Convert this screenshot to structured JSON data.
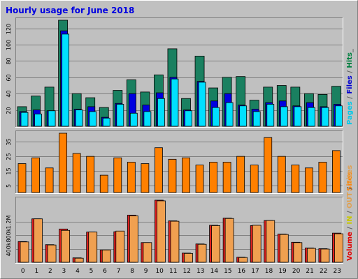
{
  "chart_data": {
    "type": "bar",
    "title": "Hourly usage for June 2018",
    "categories": [
      "0",
      "1",
      "2",
      "3",
      "4",
      "5",
      "6",
      "7",
      "8",
      "9",
      "10",
      "11",
      "12",
      "13",
      "14",
      "15",
      "16",
      "17",
      "18",
      "19",
      "20",
      "21",
      "22",
      "23"
    ],
    "panels": [
      {
        "id": "hits",
        "ylim": [
          0,
          130
        ],
        "yticks": [
          "20",
          "40",
          "60",
          "80",
          "100",
          "120"
        ],
        "ytick_values": [
          20,
          40,
          60,
          80,
          100,
          120
        ],
        "side_label": [
          {
            "text": "Pages",
            "color": "#00c8e8"
          },
          {
            "text": " / ",
            "color": "#606060"
          },
          {
            "text": "Files",
            "color": "#0000d0"
          },
          {
            "text": " / ",
            "color": "#606060"
          },
          {
            "text": "Hits",
            "color": "#008040"
          },
          {
            "text": "_",
            "color": "#606060"
          }
        ],
        "series": [
          {
            "name": "Hits",
            "color": "#1a8060",
            "values": [
              24,
              37,
              48,
              130,
              40,
              35,
              23,
              44,
              57,
              42,
              63,
              95,
              34,
              86,
              47,
              60,
              61,
              32,
              48,
              50,
              48,
              40,
              39,
              49
            ]
          },
          {
            "name": "Files",
            "color": "#0000e0",
            "values": [
              18,
              20,
              19,
              117,
              21,
              24,
              11,
              28,
              40,
              26,
              41,
              60,
              20,
              55,
              31,
              40,
              26,
              21,
              29,
              31,
              25,
              29,
              24,
              27
            ]
          },
          {
            "name": "Pages",
            "color": "#00e0ff",
            "values": [
              17,
              15,
              19,
              113,
              20,
              18,
              10,
              27,
              16,
              18,
              34,
              58,
              19,
              54,
              23,
              29,
              25,
              18,
              27,
              24,
              24,
              23,
              23,
              25
            ]
          }
        ]
      },
      {
        "id": "sites",
        "ylim": [
          0,
          41
        ],
        "yticks": [
          "5",
          "15",
          "25",
          "35"
        ],
        "ytick_values": [
          5,
          15,
          25,
          35
        ],
        "side_label": [
          {
            "text": "Sites",
            "color": "#ff8000"
          }
        ],
        "series": [
          {
            "name": "Sites",
            "color": "#ff8000",
            "values": [
              20,
              24,
              17,
              41,
              27,
              25,
              12,
              24,
              21,
              20,
              31,
              23,
              24,
              19,
              21,
              21,
              25,
              19,
              38,
              25,
              19,
              17,
              21,
              29
            ]
          }
        ]
      },
      {
        "id": "volume",
        "ylim": [
          0,
          1850000
        ],
        "yticks": [
          "400k",
          "800k",
          "1.2M"
        ],
        "ytick_values": [
          400000,
          800000,
          1200000
        ],
        "side_label": [
          {
            "text": "Volume",
            "color": "#e00000"
          },
          {
            "text": " / ",
            "color": "#606060"
          },
          {
            "text": "IN",
            "color": "#c8c800"
          },
          {
            "text": " / ",
            "color": "#606060"
          },
          {
            "text": "OUT",
            "color": "#e0a050"
          },
          {
            "text": " / ",
            "color": "#606060"
          },
          {
            "text": "Sites",
            "color": "#e0a050"
          }
        ],
        "series": [
          {
            "name": "Volume",
            "color": "#e02020",
            "values": [
              610000,
              1280000,
              520000,
              980000,
              130000,
              890000,
              360000,
              900000,
              1390000,
              580000,
              1830000,
              1220000,
              270000,
              540000,
              1090000,
              1300000,
              150000,
              1080000,
              1230000,
              830000,
              590000,
              420000,
              400000,
              860000
            ]
          },
          {
            "name": "OUT",
            "color": "#f0a050",
            "values": [
              600000,
              1280000,
              510000,
              940000,
              120000,
              890000,
              360000,
              920000,
              1370000,
              580000,
              1810000,
              1210000,
              260000,
              530000,
              1080000,
              1290000,
              140000,
              1090000,
              1230000,
              820000,
              580000,
              410000,
              390000,
              840000
            ]
          }
        ]
      }
    ],
    "colors": {
      "background": "#c0c0c0",
      "plot_bg": "#c0c0c0",
      "grid": "#808080",
      "title": "#0000e0",
      "axis_text": "#000000"
    }
  }
}
